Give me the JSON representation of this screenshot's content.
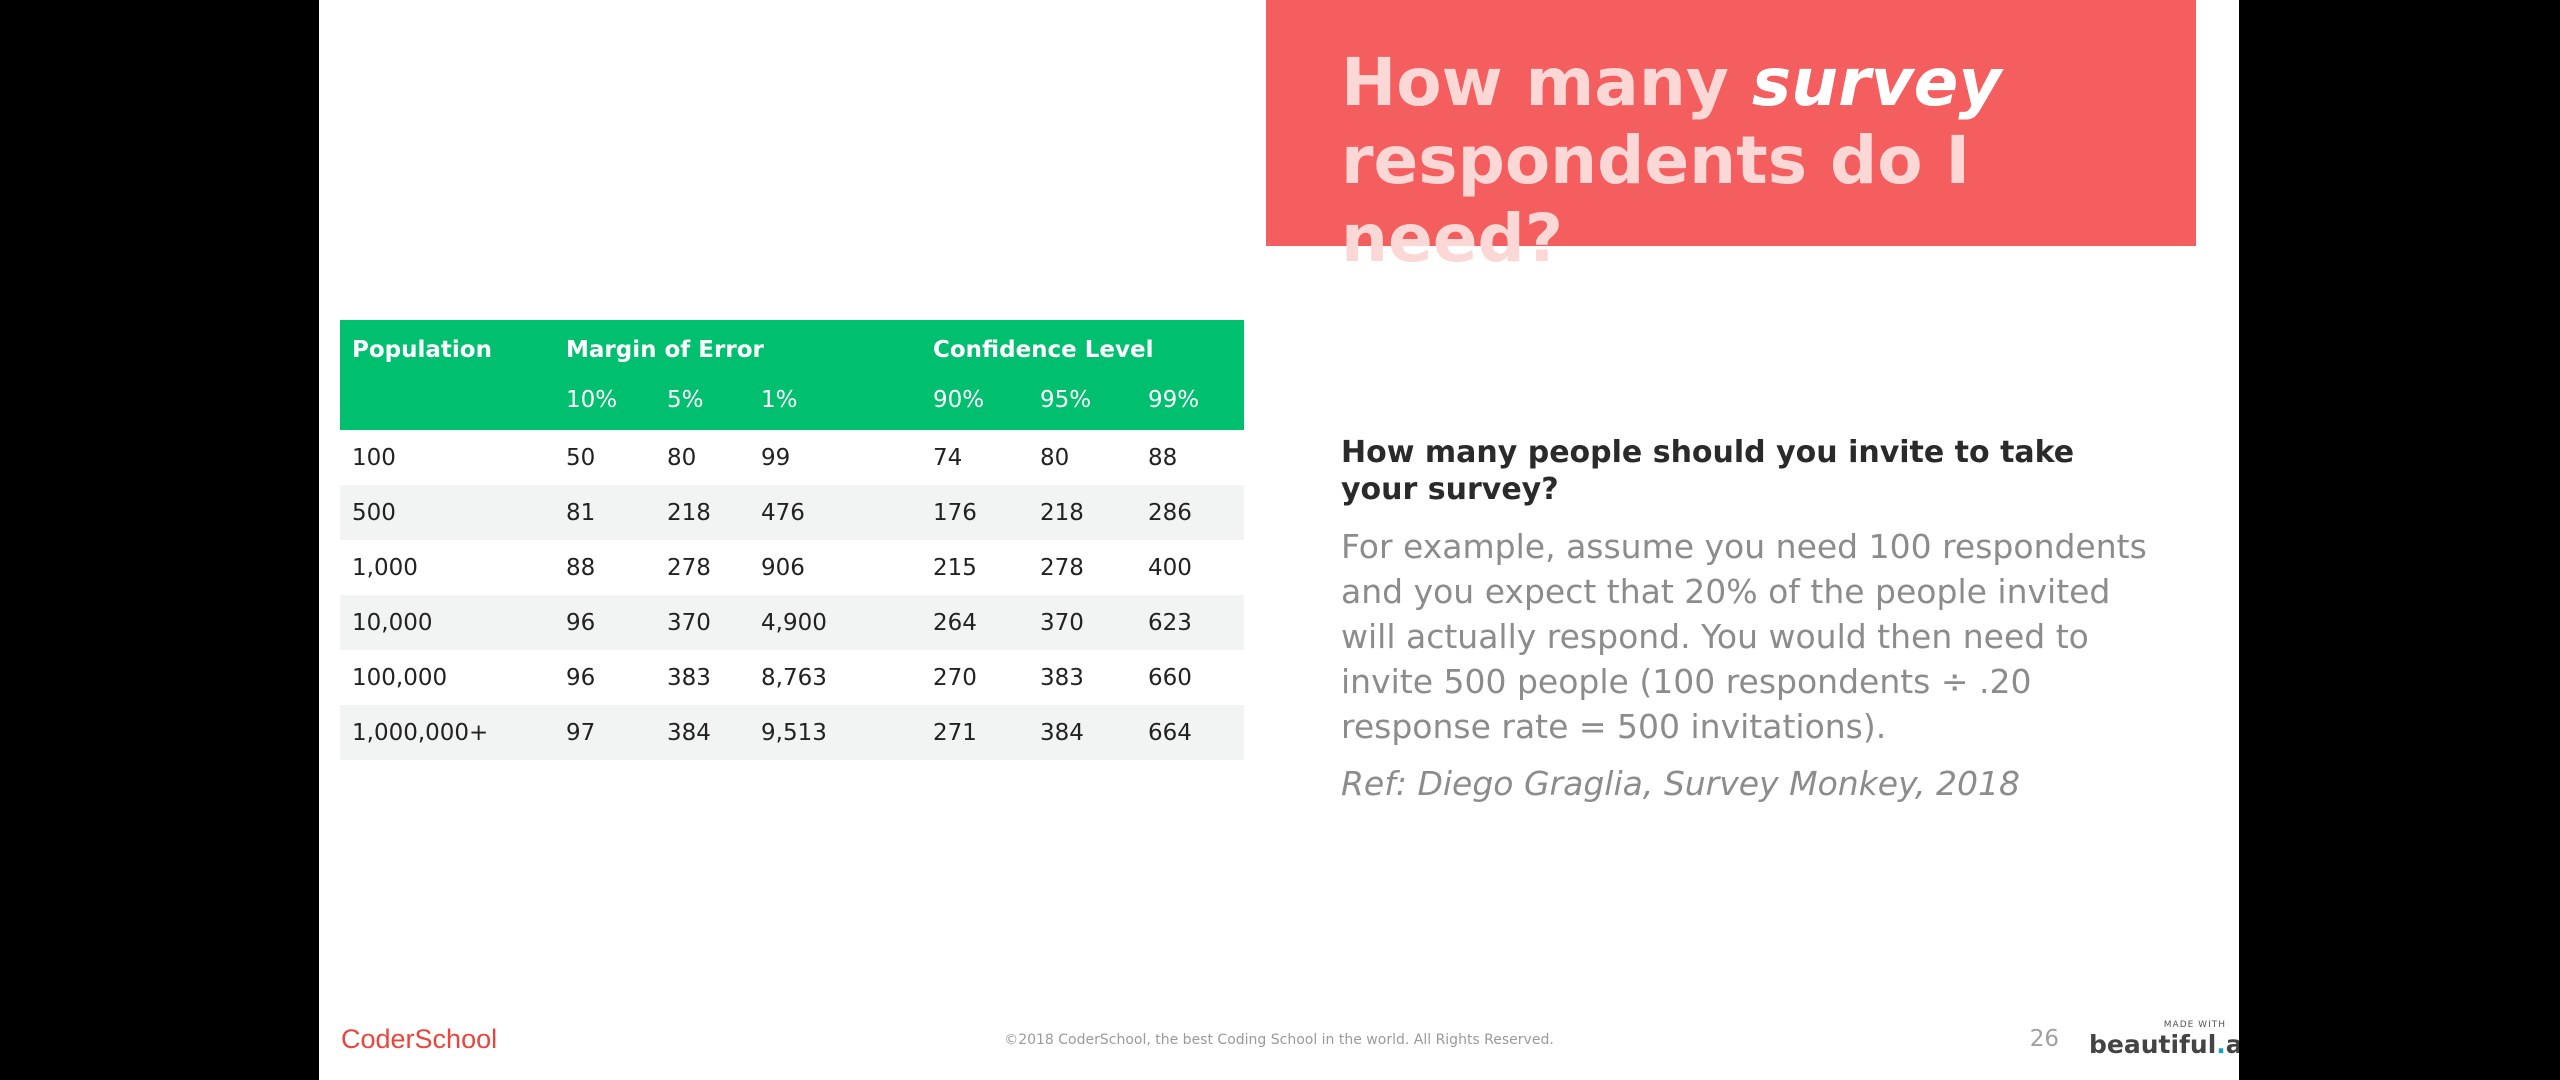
{
  "title": {
    "line1_prefix": "How many ",
    "line1_emphasis": "survey",
    "line2": "respondents do I need?"
  },
  "table": {
    "group_headers": [
      "Population",
      "Margin of Error",
      "Confidence Level"
    ],
    "sub_headers": [
      "10%",
      "5%",
      "1%",
      "90%",
      "95%",
      "99%"
    ],
    "rows": [
      [
        "100",
        "50",
        "80",
        "99",
        "74",
        "80",
        "88"
      ],
      [
        "500",
        "81",
        "218",
        "476",
        "176",
        "218",
        "286"
      ],
      [
        "1,000",
        "88",
        "278",
        "906",
        "215",
        "278",
        "400"
      ],
      [
        "10,000",
        "96",
        "370",
        "4,900",
        "264",
        "370",
        "623"
      ],
      [
        "100,000",
        "96",
        "383",
        "8,763",
        "270",
        "383",
        "660"
      ],
      [
        "1,000,000+",
        "97",
        "384",
        "9,513",
        "271",
        "384",
        "664"
      ]
    ]
  },
  "body": {
    "question": "How many people should you invite to take your survey?",
    "paragraph": "For example, assume you need 100 respondents and you expect that 20% of the people invited will actually respond. You would then need to invite 500 people (100 respondents ÷ .20 response rate = 500 invitations).",
    "reference": "Ref: Diego Graglia, Survey Monkey, 2018"
  },
  "footer": {
    "logo": "CoderSchool",
    "copyright": "©2018 CoderSchool, the best Coding School in the world. All Rights Reserved.",
    "page_number": "26",
    "made_with": "MADE WITH",
    "brand_left": "beautiful",
    "brand_dot": ".",
    "brand_right": "ai"
  },
  "colors": {
    "title_bg": "#f45e5e",
    "table_header_bg": "#00bf6f",
    "logo": "#e8453c"
  }
}
